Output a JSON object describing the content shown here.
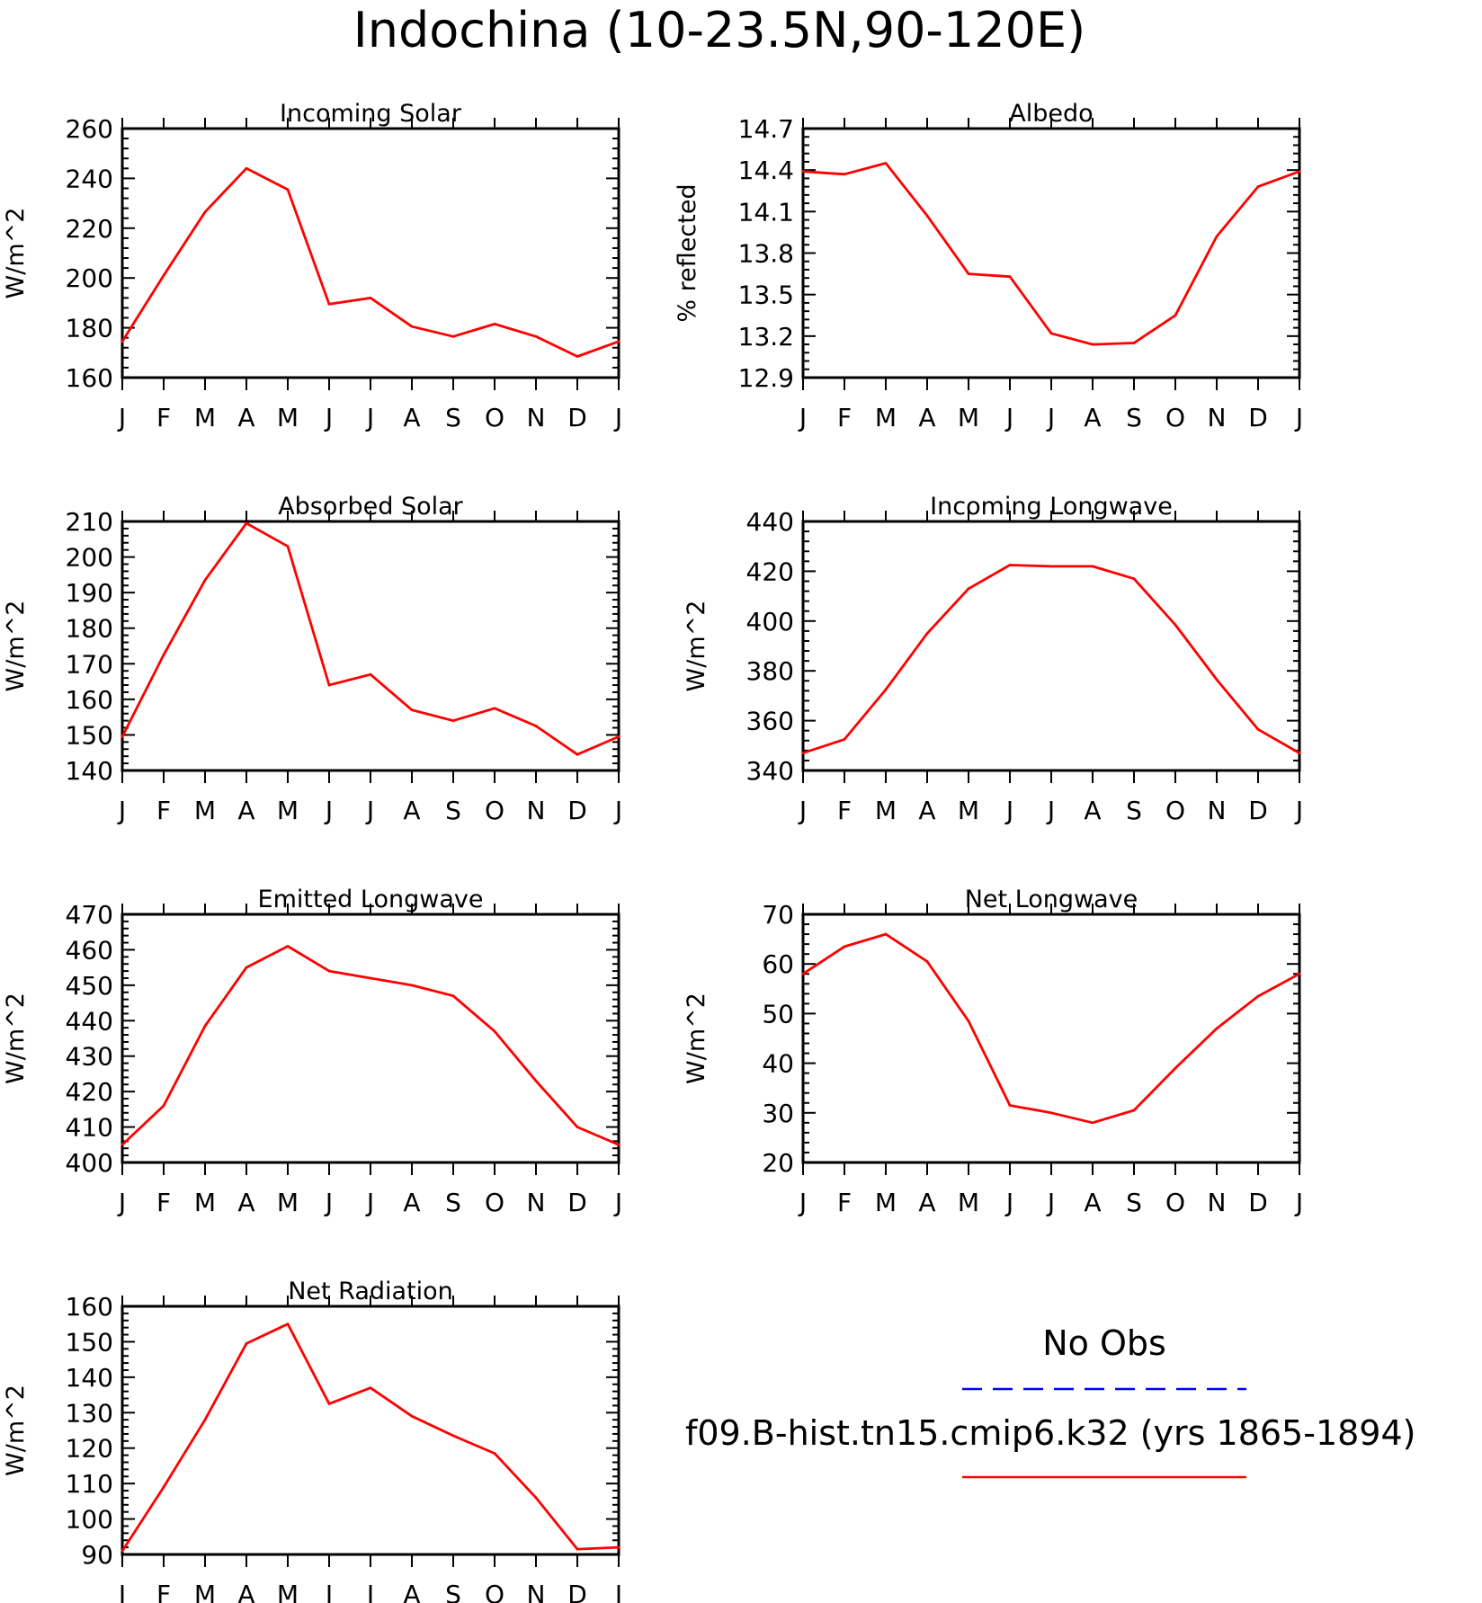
{
  "title": "Indochina (10-23.5N,90-120E)",
  "month_labels": [
    "J",
    "F",
    "M",
    "A",
    "M",
    "J",
    "J",
    "A",
    "S",
    "O",
    "N",
    "D",
    "J"
  ],
  "colors": {
    "model": "#ff0000",
    "obs": "#0000ff",
    "axis": "#000000"
  },
  "legend": {
    "obs_label": "No Obs",
    "model_label": "f09.B-hist.tn15.cmip6.k32 (yrs 1865-1894)",
    "obs_style": "dashed",
    "model_style": "solid"
  },
  "chart_data": [
    {
      "type": "line",
      "title": "Incoming Solar",
      "ylabel": "W/m^2",
      "ylim": [
        160,
        260
      ],
      "yticks": [
        160,
        180,
        200,
        220,
        240,
        260
      ],
      "categories": [
        "J",
        "F",
        "M",
        "A",
        "M",
        "J",
        "J",
        "A",
        "S",
        "O",
        "N",
        "D",
        "J"
      ],
      "series": [
        {
          "values": [
            174.5,
            201,
            226.5,
            244,
            235.5,
            189.5,
            192,
            180.5,
            176.5,
            181.5,
            176.5,
            168.5,
            174.5
          ]
        }
      ]
    },
    {
      "type": "line",
      "title": "Albedo",
      "ylabel": "% reflected",
      "ylim": [
        12.9,
        14.7
      ],
      "yticks": [
        12.9,
        13.2,
        13.5,
        13.8,
        14.1,
        14.4,
        14.7
      ],
      "categories": [
        "J",
        "F",
        "M",
        "A",
        "M",
        "J",
        "J",
        "A",
        "S",
        "O",
        "N",
        "D",
        "J"
      ],
      "series": [
        {
          "values": [
            14.39,
            14.37,
            14.45,
            14.07,
            13.65,
            13.63,
            13.22,
            13.14,
            13.15,
            13.35,
            13.92,
            14.28,
            14.39
          ]
        }
      ]
    },
    {
      "type": "line",
      "title": "Absorbed Solar",
      "ylabel": "W/m^2",
      "ylim": [
        140,
        210
      ],
      "yticks": [
        140,
        150,
        160,
        170,
        180,
        190,
        200,
        210
      ],
      "categories": [
        "J",
        "F",
        "M",
        "A",
        "M",
        "J",
        "J",
        "A",
        "S",
        "O",
        "N",
        "D",
        "J"
      ],
      "series": [
        {
          "values": [
            149.5,
            172.5,
            193.5,
            209.5,
            203,
            164,
            167,
            157,
            154,
            157.5,
            152.5,
            144.5,
            149.5
          ]
        }
      ]
    },
    {
      "type": "line",
      "title": "Incoming Longwave",
      "ylabel": "W/m^2",
      "ylim": [
        340,
        440
      ],
      "yticks": [
        340,
        360,
        380,
        400,
        420,
        440
      ],
      "categories": [
        "J",
        "F",
        "M",
        "A",
        "M",
        "J",
        "J",
        "A",
        "S",
        "O",
        "N",
        "D",
        "J"
      ],
      "series": [
        {
          "values": [
            347,
            352.5,
            372.5,
            395,
            413,
            422.5,
            422,
            422,
            417,
            398.5,
            376.5,
            356.5,
            347
          ]
        }
      ]
    },
    {
      "type": "line",
      "title": "Emitted Longwave",
      "ylabel": "W/m^2",
      "ylim": [
        400,
        470
      ],
      "yticks": [
        400,
        410,
        420,
        430,
        440,
        450,
        460,
        470
      ],
      "categories": [
        "J",
        "F",
        "M",
        "A",
        "M",
        "J",
        "J",
        "A",
        "S",
        "O",
        "N",
        "D",
        "J"
      ],
      "series": [
        {
          "values": [
            405,
            416,
            438.5,
            455,
            461,
            454,
            452,
            450,
            447,
            437,
            423,
            410,
            405
          ]
        }
      ]
    },
    {
      "type": "line",
      "title": "Net Longwave",
      "ylabel": "W/m^2",
      "ylim": [
        20,
        70
      ],
      "yticks": [
        20,
        30,
        40,
        50,
        60,
        70
      ],
      "categories": [
        "J",
        "F",
        "M",
        "A",
        "M",
        "J",
        "J",
        "A",
        "S",
        "O",
        "N",
        "D",
        "J"
      ],
      "series": [
        {
          "values": [
            58,
            63.5,
            66,
            60.5,
            48.5,
            31.5,
            30,
            28,
            30.5,
            39,
            47,
            53.5,
            58
          ]
        }
      ]
    },
    {
      "type": "line",
      "title": "Net Radiation",
      "ylabel": "W/m^2",
      "ylim": [
        90,
        160
      ],
      "yticks": [
        90,
        100,
        110,
        120,
        130,
        140,
        150,
        160
      ],
      "categories": [
        "J",
        "F",
        "M",
        "A",
        "M",
        "J",
        "J",
        "A",
        "S",
        "O",
        "N",
        "D",
        "J"
      ],
      "series": [
        {
          "values": [
            91,
            109,
            128,
            149.5,
            155,
            132.5,
            137,
            129,
            123.5,
            118.5,
            106,
            91.5,
            92
          ]
        }
      ]
    }
  ]
}
